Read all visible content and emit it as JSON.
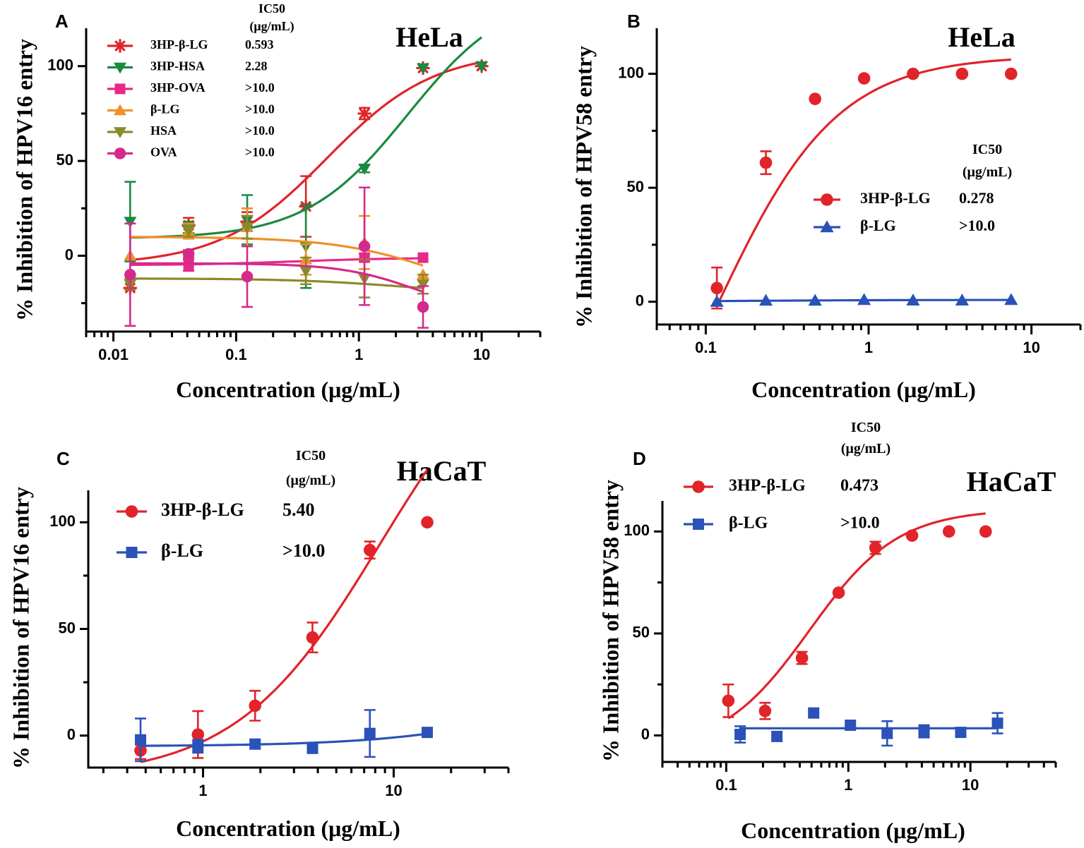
{
  "chart_data": [
    {
      "panel": "A",
      "type": "scatter",
      "title": "HeLa",
      "xlabel": "Concentration (μg/mL)",
      "ylabel": "% Inhibition of HPV16 entry",
      "x_scale": "log",
      "xlim": [
        0.006,
        30
      ],
      "ylim": [
        -40,
        120
      ],
      "x_ticks": [
        "0.01",
        "0.1",
        "1",
        "10"
      ],
      "y_ticks": [
        "0",
        "50",
        "100"
      ],
      "ic50_header": [
        "IC50",
        "(μg/mL)"
      ],
      "series": [
        {
          "name": "3HP-β-LG",
          "ic50": "0.593",
          "color": "#e0242a",
          "marker": "asterisk",
          "x": [
            0.0137,
            0.041,
            0.123,
            0.37,
            1.11,
            3.33,
            10.0
          ],
          "y": [
            -17,
            16,
            18,
            26,
            75,
            99,
            100
          ],
          "err": [
            0,
            4,
            5,
            16,
            3,
            0,
            0
          ],
          "fit": {
            "bottom": -5,
            "top": 108,
            "ec50": 0.55,
            "hill": 1.0,
            "xmin": 0.0137,
            "xmax": 10.0
          }
        },
        {
          "name": "3HP-HSA",
          "ic50": "2.28",
          "color": "#1a8a42",
          "marker": "triangle-down",
          "x": [
            0.0137,
            0.041,
            0.123,
            0.37,
            1.11,
            3.33,
            10.0
          ],
          "y": [
            18,
            15,
            19,
            5,
            46,
            99,
            100
          ],
          "err": [
            21,
            3,
            13,
            22,
            2,
            0,
            0
          ],
          "fit": {
            "bottom": 9,
            "top": 140,
            "ec50": 2.5,
            "hill": 1.05,
            "xmin": 0.0137,
            "xmax": 10.0
          }
        },
        {
          "name": "3HP-OVA",
          "ic50": ">10.0",
          "color": "#e8298a",
          "marker": "square",
          "x": [
            0.041,
            1.11,
            3.33
          ],
          "y": [
            -5,
            -1,
            -1
          ],
          "err": [
            3,
            2,
            0
          ],
          "fit": {
            "bottom": -5,
            "top": -1,
            "ec50": 0.3,
            "hill": 1.0,
            "xmin": 0.0137,
            "xmax": 3.33
          }
        },
        {
          "name": "β-LG",
          "ic50": ">10.0",
          "color": "#f0902a",
          "marker": "triangle-up",
          "x": [
            0.0137,
            0.041,
            0.123,
            0.37,
            1.11,
            3.33
          ],
          "y": [
            0,
            13,
            15,
            -2,
            7,
            -10
          ],
          "err": [
            0,
            4,
            10,
            8,
            14,
            0
          ],
          "fit": {
            "bottom": 10,
            "top": -28,
            "ec50": 5.0,
            "hill": 1.0,
            "xmin": 0.0137,
            "xmax": 3.33
          }
        },
        {
          "name": "HSA",
          "ic50": ">10.0",
          "color": "#8a8a2a",
          "marker": "triangle-down",
          "x": [
            0.0137,
            0.041,
            0.123,
            0.37,
            1.11,
            3.33
          ],
          "y": [
            -15,
            13,
            15,
            -8,
            -12,
            -15
          ],
          "err": [
            3,
            3,
            6,
            7,
            10,
            5
          ],
          "fit": {
            "bottom": -12,
            "top": -20,
            "ec50": 2.0,
            "hill": 1.0,
            "xmin": 0.0137,
            "xmax": 3.33
          }
        },
        {
          "name": "OVA",
          "ic50": ">10.0",
          "color": "#d42a8c",
          "marker": "circle",
          "x": [
            0.0137,
            0.041,
            0.123,
            1.11,
            3.33
          ],
          "y": [
            -10,
            1,
            -11,
            5,
            -27
          ],
          "err": [
            27,
            2,
            16,
            31,
            11
          ],
          "fit": {
            "bottom": -4,
            "top": -32,
            "ec50": 3.0,
            "hill": 1.4,
            "xmin": 0.0137,
            "xmax": 3.33
          }
        }
      ]
    },
    {
      "panel": "B",
      "type": "scatter",
      "title": "HeLa",
      "xlabel": "Concentration (μg/mL)",
      "ylabel": "% Inhibition of HPV58 entry",
      "x_scale": "log",
      "xlim": [
        0.05,
        20
      ],
      "ylim": [
        -10,
        120
      ],
      "x_ticks": [
        "0.1",
        "1",
        "10"
      ],
      "y_ticks": [
        "0",
        "50",
        "100"
      ],
      "ic50_header": [
        "IC50",
        "(μg/mL)"
      ],
      "series": [
        {
          "name": "3HP-β-LG",
          "ic50": "0.278",
          "color": "#e0242a",
          "marker": "circle",
          "x": [
            0.117,
            0.234,
            0.469,
            0.938,
            1.875,
            3.75,
            7.5
          ],
          "y": [
            6,
            61,
            89,
            98,
            100,
            100,
            100
          ],
          "err": [
            9,
            5,
            0,
            0,
            0,
            0,
            0
          ],
          "fit": {
            "bottom": -120,
            "top": 108,
            "ec50": 0.11,
            "hill": 1.15,
            "xmin": 0.117,
            "xmax": 7.5
          }
        },
        {
          "name": "β-LG",
          "ic50": ">10.0",
          "color": "#2a52b8",
          "marker": "triangle-up",
          "x": [
            0.117,
            0.234,
            0.469,
            0.938,
            1.875,
            3.75,
            7.5
          ],
          "y": [
            0,
            0.5,
            0.5,
            0.8,
            0.6,
            0.6,
            0.8
          ],
          "err": [
            0,
            0,
            0,
            0,
            0,
            0,
            0
          ],
          "fit": {
            "bottom": 0,
            "top": 0.8,
            "ec50": 0.2,
            "hill": 1.0,
            "xmin": 0.117,
            "xmax": 7.5
          }
        }
      ]
    },
    {
      "panel": "C",
      "type": "scatter",
      "title": "HaCaT",
      "xlabel": "Concentration (μg/mL)",
      "ylabel": "% Inhibition of HPV16 entry",
      "x_scale": "log",
      "xlim": [
        0.25,
        40
      ],
      "ylim": [
        -15,
        115
      ],
      "x_ticks": [
        "1",
        "10"
      ],
      "y_ticks": [
        "0",
        "50",
        "100"
      ],
      "ic50_header": [
        "IC50",
        "(μg/mL)"
      ],
      "series": [
        {
          "name": "3HP-β-LG",
          "ic50": "5.40",
          "color": "#e0242a",
          "marker": "circle",
          "x": [
            0.47,
            0.94,
            1.875,
            3.75,
            7.5,
            15
          ],
          "y": [
            -7,
            0.5,
            14,
            46,
            87,
            100
          ],
          "err": [
            4,
            11,
            7,
            7,
            4,
            0
          ],
          "fit": {
            "bottom": -20,
            "top": 200,
            "ec50": 8.5,
            "hill": 1.15,
            "xmin": 0.47,
            "xmax": 15
          }
        },
        {
          "name": "β-LG",
          "ic50": ">10.0",
          "color": "#2a52b8",
          "marker": "square",
          "x": [
            0.47,
            0.94,
            1.875,
            3.75,
            7.5,
            15
          ],
          "y": [
            -2,
            -5,
            -4,
            -6,
            1,
            1.5
          ],
          "err": [
            10,
            3,
            2,
            0,
            11,
            0
          ],
          "fit": {
            "bottom": -5,
            "top": 40,
            "ec50": 100,
            "hill": 1.0,
            "xmin": 0.47,
            "xmax": 15
          }
        }
      ]
    },
    {
      "panel": "D",
      "type": "scatter",
      "title": "HaCaT",
      "xlabel": "Concentration (μg/mL)",
      "ylabel": "% Inhibition of HPV58 entry",
      "x_scale": "log",
      "xlim": [
        0.03,
        50
      ],
      "ylim": [
        -13,
        115
      ],
      "x_ticks": [
        "0.1",
        "1",
        "10"
      ],
      "y_ticks": [
        "0",
        "50",
        "100"
      ],
      "ic50_header": [
        "IC50",
        "(μg/mL)"
      ],
      "series": [
        {
          "name": "3HP-β-LG",
          "ic50": "0.473",
          "color": "#e0242a",
          "marker": "circle",
          "x": [
            0.104,
            0.208,
            0.417,
            0.833,
            1.667,
            3.33,
            6.67,
            13.33
          ],
          "y": [
            17,
            12,
            38,
            70,
            92,
            98,
            100,
            100
          ],
          "err": [
            8,
            4,
            3,
            0,
            3,
            0,
            0,
            0
          ],
          "fit": {
            "bottom": -8,
            "top": 111,
            "ec50": 0.48,
            "hill": 1.2,
            "xmin": 0.104,
            "xmax": 13.33
          }
        },
        {
          "name": "β-LG",
          "ic50": ">10.0",
          "color": "#2a52b8",
          "marker": "square",
          "x": [
            0.13,
            0.26,
            0.52,
            1.04,
            2.08,
            4.17,
            8.33,
            16.67
          ],
          "y": [
            0.5,
            -0.5,
            11,
            5,
            1,
            2,
            1.5,
            6
          ],
          "err": [
            4,
            0,
            0,
            0,
            6,
            3,
            0,
            5
          ],
          "fit": {
            "bottom": 3.5,
            "top": 3.5,
            "ec50": 1.0,
            "hill": 1.0,
            "xmin": 0.13,
            "xmax": 16.67
          }
        }
      ]
    }
  ]
}
